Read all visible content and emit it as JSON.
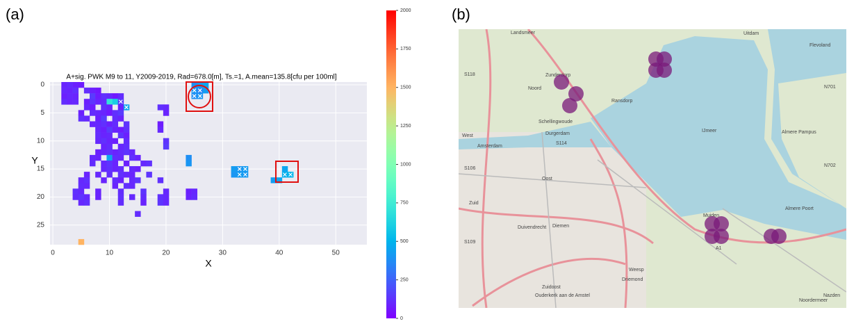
{
  "panels": [
    "(a)",
    "(b)"
  ],
  "chart_data": {
    "type": "heatmap",
    "title": "A+sig. PWK M9 to 11, Y2009-2019, Rad=678.0[m], Ts.=1, A.mean=135.8[cfu per 100ml]",
    "x_label": "X",
    "y_label": "Y",
    "xlim": [
      -0.5,
      55.5
    ],
    "ylim": [
      28.5,
      -0.5
    ],
    "xticks": [
      0,
      10,
      20,
      30,
      40,
      50
    ],
    "yticks": [
      0,
      5,
      10,
      15,
      20,
      25
    ],
    "grid": true,
    "colormap": "rainbow",
    "clim": [
      0,
      2000
    ],
    "cticks": [
      0,
      250,
      500,
      750,
      1000,
      1250,
      1500,
      1750,
      2000
    ],
    "cells": {
      "x": [
        2,
        3,
        4,
        5,
        25,
        26,
        27,
        2,
        3,
        4,
        6,
        7,
        8,
        25,
        26,
        27,
        2,
        3,
        4,
        7,
        8,
        9,
        10,
        11,
        12,
        25,
        26,
        2,
        3,
        4,
        6,
        7,
        8,
        9,
        10,
        11,
        12,
        6,
        7,
        9,
        10,
        12,
        13,
        19,
        20,
        5,
        7,
        8,
        9,
        10,
        11,
        12,
        20,
        5,
        6,
        8,
        9,
        11,
        12,
        7,
        8,
        9,
        10,
        11,
        13,
        19,
        8,
        9,
        10,
        11,
        12,
        13,
        19,
        8,
        9,
        10,
        12,
        13,
        8,
        9,
        10,
        11,
        13,
        20,
        9,
        10,
        12,
        13,
        20,
        8,
        9,
        10,
        11,
        12,
        13,
        14,
        7,
        8,
        10,
        11,
        12,
        14,
        15,
        24,
        7,
        9,
        10,
        11,
        13,
        16,
        17,
        24,
        9,
        10,
        11,
        12,
        14,
        15,
        32,
        33,
        34,
        41,
        6,
        8,
        10,
        12,
        13,
        14,
        17,
        32,
        33,
        34,
        41,
        42,
        5,
        6,
        9,
        11,
        12,
        14,
        15,
        19,
        39,
        40,
        5,
        6,
        11,
        13,
        14,
        4,
        5,
        8,
        12,
        16,
        20,
        24,
        25,
        4,
        5,
        6,
        8,
        12,
        14,
        16,
        19,
        20,
        24,
        25,
        5,
        6,
        12,
        16,
        19,
        20,
        15,
        5
      ],
      "y": [
        0,
        0,
        0,
        0,
        0,
        0,
        0,
        1,
        1,
        1,
        1,
        1,
        1,
        1,
        1,
        1,
        2,
        2,
        2,
        2,
        2,
        2,
        2,
        2,
        2,
        2,
        2,
        3,
        3,
        3,
        3,
        3,
        3,
        3,
        3,
        3,
        3,
        4,
        4,
        4,
        4,
        4,
        4,
        4,
        4,
        5,
        5,
        5,
        5,
        5,
        5,
        5,
        5,
        6,
        6,
        6,
        6,
        6,
        6,
        7,
        7,
        7,
        7,
        7,
        7,
        7,
        8,
        8,
        8,
        8,
        8,
        8,
        8,
        9,
        9,
        9,
        9,
        9,
        10,
        10,
        10,
        10,
        10,
        10,
        11,
        11,
        11,
        11,
        11,
        12,
        12,
        12,
        12,
        12,
        12,
        12,
        13,
        13,
        13,
        13,
        13,
        13,
        13,
        13,
        14,
        14,
        14,
        14,
        14,
        14,
        14,
        14,
        15,
        15,
        15,
        15,
        15,
        15,
        15,
        15,
        15,
        15,
        16,
        16,
        16,
        16,
        16,
        16,
        16,
        16,
        16,
        16,
        16,
        16,
        17,
        17,
        17,
        17,
        17,
        17,
        17,
        17,
        17,
        17,
        18,
        18,
        18,
        18,
        18,
        19,
        19,
        19,
        19,
        19,
        19,
        19,
        19,
        20,
        20,
        20,
        20,
        20,
        20,
        20,
        20,
        20,
        20,
        20,
        21,
        21,
        21,
        21,
        21,
        21,
        23,
        28
      ],
      "values": [
        90,
        110,
        80,
        70,
        380,
        420,
        450,
        100,
        90,
        120,
        110,
        80,
        60,
        400,
        350,
        420,
        80,
        100,
        90,
        150,
        70,
        120,
        100,
        60,
        110,
        380,
        400,
        110,
        90,
        100,
        80,
        130,
        90,
        110,
        700,
        600,
        150,
        100,
        70,
        120,
        90,
        80,
        450,
        120,
        100,
        80,
        110,
        100,
        90,
        60,
        120,
        150,
        90,
        120,
        100,
        80,
        150,
        110,
        90,
        90,
        100,
        120,
        80,
        110,
        130,
        70,
        100,
        80,
        150,
        90,
        70,
        120,
        100,
        110,
        90,
        100,
        130,
        80,
        100,
        120,
        90,
        80,
        110,
        130,
        90,
        110,
        100,
        120,
        150,
        80,
        100,
        120,
        90,
        110,
        130,
        100,
        100,
        90,
        450,
        110,
        100,
        120,
        90,
        380,
        110,
        100,
        130,
        90,
        80,
        100,
        120,
        400,
        100,
        120,
        90,
        110,
        100,
        80,
        420,
        400,
        420,
        450,
        90,
        100,
        110,
        120,
        100,
        90,
        130,
        400,
        420,
        410,
        480,
        500,
        100,
        120,
        90,
        110,
        80,
        100,
        130,
        120,
        420,
        450,
        110,
        100,
        90,
        120,
        100,
        120,
        100,
        90,
        110,
        130,
        100,
        80,
        100,
        110,
        130,
        100,
        90,
        120,
        100,
        110,
        120,
        100,
        90,
        110,
        100,
        120,
        110,
        90,
        130,
        100,
        110,
        1500
      ]
    },
    "markers": {
      "x": [
        25,
        26,
        25,
        26,
        12,
        13,
        33,
        34,
        33,
        34,
        41,
        42
      ],
      "y": [
        1,
        1,
        2,
        2,
        3,
        4,
        15,
        15,
        16,
        16,
        16,
        16
      ]
    }
  },
  "map": {
    "labels": [
      "Landsmeer",
      "Zunderdorp",
      "Noord",
      "Ransdorp",
      "Schellingwoude",
      "Durgerdam",
      "Amsterdam",
      "West",
      "Oost",
      "Zuid",
      "Diemen",
      "Duivendrecht",
      "Zuidoost",
      "Weesp",
      "Driemond",
      "Muiden",
      "Almere Pampus",
      "Almere Poort",
      "IJmeer",
      "Uitdam",
      "Flevoland",
      "Ouderkerk aan de Amstel",
      "Noordermeer",
      "Nazden",
      "S118",
      "S114",
      "S106",
      "S109",
      "N701",
      "N702",
      "A1"
    ]
  }
}
